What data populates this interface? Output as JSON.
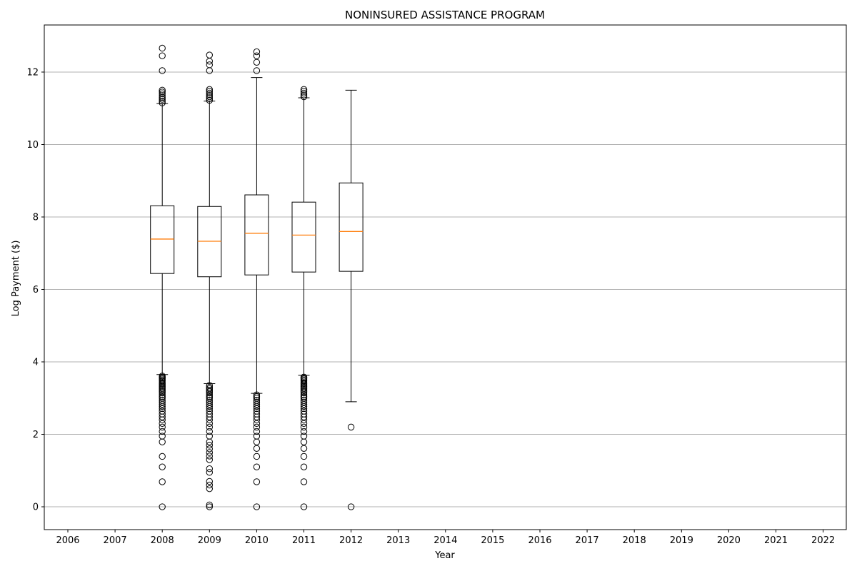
{
  "chart_data": {
    "type": "box",
    "title": "NONINSURED ASSISTANCE PROGRAM",
    "xlabel": "Year",
    "ylabel": "Log Payment ($)",
    "categories": [
      "2006",
      "2007",
      "2008",
      "2009",
      "2010",
      "2011",
      "2012",
      "2013",
      "2014",
      "2015",
      "2016",
      "2017",
      "2018",
      "2019",
      "2020",
      "2021",
      "2022"
    ],
    "ylim": [
      -0.63,
      13.3
    ],
    "yticks": [
      0,
      2,
      4,
      6,
      8,
      10,
      12
    ],
    "grid": "y",
    "colors": {
      "box": "#000000",
      "median": "#ff7f0e",
      "grid": "#b0b0b0"
    },
    "boxes": [
      {
        "category": "2008",
        "whisker_low": 3.65,
        "q1": 6.44,
        "median": 7.39,
        "q3": 8.31,
        "whisker_high": 11.13,
        "outliers": [
          0,
          0.69,
          1.1,
          1.39,
          1.79,
          1.95,
          2.08,
          2.2,
          2.3,
          2.4,
          2.48,
          2.56,
          2.64,
          2.71,
          2.77,
          2.83,
          2.89,
          2.94,
          3.0,
          3.04,
          3.09,
          3.14,
          3.18,
          3.22,
          3.26,
          3.3,
          3.33,
          3.37,
          3.4,
          3.43,
          3.47,
          3.5,
          3.53,
          3.56,
          3.58,
          3.61,
          11.15,
          11.2,
          11.25,
          11.3,
          11.35,
          11.4,
          11.45,
          11.5,
          12.04,
          12.45,
          12.66
        ]
      },
      {
        "category": "2009",
        "whisker_low": 3.4,
        "q1": 6.35,
        "median": 7.33,
        "q3": 8.29,
        "whisker_high": 11.2,
        "outliers": [
          0,
          0.05,
          0.5,
          0.6,
          0.7,
          0.95,
          1.05,
          1.3,
          1.4,
          1.5,
          1.6,
          1.7,
          1.79,
          1.95,
          2.08,
          2.2,
          2.3,
          2.4,
          2.48,
          2.56,
          2.64,
          2.71,
          2.77,
          2.83,
          2.89,
          2.94,
          3.0,
          3.04,
          3.09,
          3.14,
          3.18,
          3.22,
          3.26,
          3.3,
          3.35,
          11.22,
          11.27,
          11.32,
          11.37,
          11.42,
          11.47,
          11.52,
          12.04,
          12.2,
          12.3,
          12.47
        ]
      },
      {
        "category": "2010",
        "whisker_low": 3.13,
        "q1": 6.4,
        "median": 7.55,
        "q3": 8.61,
        "whisker_high": 11.85,
        "outliers": [
          0,
          0.69,
          1.1,
          1.39,
          1.61,
          1.79,
          1.95,
          2.08,
          2.2,
          2.3,
          2.4,
          2.48,
          2.56,
          2.64,
          2.71,
          2.77,
          2.83,
          2.89,
          2.94,
          3.0,
          3.04,
          3.09,
          12.04,
          12.27,
          12.45,
          12.56
        ]
      },
      {
        "category": "2011",
        "whisker_low": 3.63,
        "q1": 6.48,
        "median": 7.5,
        "q3": 8.41,
        "whisker_high": 11.29,
        "outliers": [
          0,
          0.69,
          1.1,
          1.39,
          1.61,
          1.79,
          1.95,
          2.08,
          2.2,
          2.3,
          2.4,
          2.48,
          2.56,
          2.64,
          2.71,
          2.77,
          2.83,
          2.89,
          2.94,
          3.0,
          3.04,
          3.09,
          3.14,
          3.18,
          3.22,
          3.26,
          3.3,
          3.33,
          3.37,
          3.4,
          3.43,
          3.47,
          3.5,
          3.53,
          3.56,
          3.58,
          11.32,
          11.37,
          11.42,
          11.47,
          11.52
        ]
      },
      {
        "category": "2012",
        "whisker_low": 2.9,
        "q1": 6.5,
        "median": 7.6,
        "q3": 8.94,
        "whisker_high": 11.5,
        "outliers": [
          0,
          2.2
        ]
      }
    ]
  }
}
